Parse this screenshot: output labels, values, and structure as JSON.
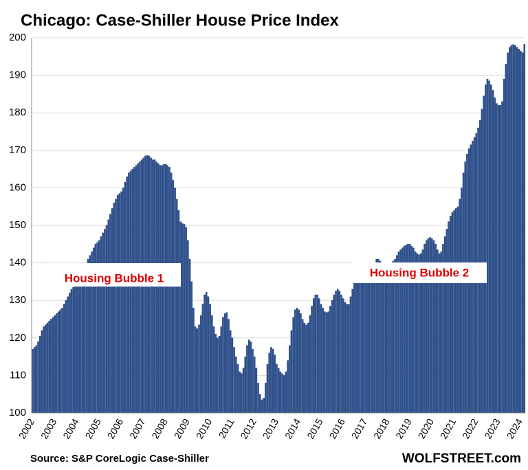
{
  "chart_data": {
    "type": "bar",
    "title": "Chicago: Case-Shiller House Price Index",
    "source": "Source: S&P CoreLogic Case-Shiller",
    "brand": "WOLFSTREET.com",
    "annotations": [
      "Housing Bubble 1",
      "Housing Bubble 2"
    ],
    "color": "#2f5597",
    "grid": true,
    "ylim": [
      100,
      200
    ],
    "yticks": [
      100,
      110,
      120,
      130,
      140,
      150,
      160,
      170,
      180,
      190,
      200
    ],
    "categories": [
      "2002",
      null,
      null,
      null,
      null,
      null,
      null,
      null,
      null,
      null,
      null,
      null,
      "2003",
      null,
      null,
      null,
      null,
      null,
      null,
      null,
      null,
      null,
      null,
      null,
      "2004",
      null,
      null,
      null,
      null,
      null,
      null,
      null,
      null,
      null,
      null,
      null,
      "2005",
      null,
      null,
      null,
      null,
      null,
      null,
      null,
      null,
      null,
      null,
      null,
      "2006",
      null,
      null,
      null,
      null,
      null,
      null,
      null,
      null,
      null,
      null,
      null,
      "2007",
      null,
      null,
      null,
      null,
      null,
      null,
      null,
      null,
      null,
      null,
      null,
      "2008",
      null,
      null,
      null,
      null,
      null,
      null,
      null,
      null,
      null,
      null,
      null,
      "2009",
      null,
      null,
      null,
      null,
      null,
      null,
      null,
      null,
      null,
      null,
      null,
      "2010",
      null,
      null,
      null,
      null,
      null,
      null,
      null,
      null,
      null,
      null,
      null,
      "2011",
      null,
      null,
      null,
      null,
      null,
      null,
      null,
      null,
      null,
      null,
      null,
      "2012",
      null,
      null,
      null,
      null,
      null,
      null,
      null,
      null,
      null,
      null,
      null,
      "2013",
      null,
      null,
      null,
      null,
      null,
      null,
      null,
      null,
      null,
      null,
      null,
      "2014",
      null,
      null,
      null,
      null,
      null,
      null,
      null,
      null,
      null,
      null,
      null,
      "2015",
      null,
      null,
      null,
      null,
      null,
      null,
      null,
      null,
      null,
      null,
      null,
      "2016",
      null,
      null,
      null,
      null,
      null,
      null,
      null,
      null,
      null,
      null,
      null,
      "2017",
      null,
      null,
      null,
      null,
      null,
      null,
      null,
      null,
      null,
      null,
      null,
      "2018",
      null,
      null,
      null,
      null,
      null,
      null,
      null,
      null,
      null,
      null,
      null,
      "2019",
      null,
      null,
      null,
      null,
      null,
      null,
      null,
      null,
      null,
      null,
      null,
      "2020",
      null,
      null,
      null,
      null,
      null,
      null,
      null,
      null,
      null,
      null,
      null,
      "2021",
      null,
      null,
      null,
      null,
      null,
      null,
      null,
      null,
      null,
      null,
      null,
      "2022",
      null,
      null,
      null,
      null,
      null,
      null,
      null,
      null,
      null,
      null,
      null,
      "2023",
      null,
      null,
      null,
      null,
      null,
      null,
      null,
      null,
      null,
      null,
      null,
      "2024",
      null,
      null
    ],
    "values": [
      117,
      117.5,
      118,
      119,
      120.5,
      122,
      123,
      123.5,
      124,
      124.5,
      125,
      125.5,
      126,
      126.5,
      127,
      127.5,
      128,
      129,
      130,
      131,
      132,
      133,
      133.5,
      134,
      134.5,
      135,
      136,
      137,
      138,
      139,
      141,
      142,
      143,
      144,
      145,
      145.5,
      146,
      147,
      148,
      149,
      150,
      151.5,
      153,
      154.5,
      156,
      157,
      158,
      158.5,
      159,
      160,
      161.5,
      163,
      164,
      164.5,
      165,
      165.5,
      166,
      166.5,
      167,
      167.5,
      168,
      168.5,
      168.7,
      168.5,
      168,
      167.5,
      167.5,
      167,
      166.5,
      166,
      166,
      166.3,
      166.3,
      166,
      165.5,
      164,
      162,
      160,
      157,
      154,
      151,
      150.5,
      150.3,
      149.5,
      146,
      141,
      135,
      128,
      123,
      122.5,
      123.5,
      126,
      129,
      131.5,
      132.2,
      131,
      129,
      126,
      123,
      121,
      120,
      120.5,
      123,
      125.5,
      126.5,
      126.8,
      125,
      122,
      120,
      117.5,
      115,
      113,
      111,
      110.5,
      112,
      115,
      118,
      119.5,
      119,
      117,
      115,
      112,
      108,
      105,
      103.5,
      104,
      108,
      113,
      116,
      117.5,
      117,
      115.5,
      113,
      112,
      111,
      110.5,
      110,
      111,
      114,
      118,
      122,
      125.5,
      127.5,
      128,
      127.5,
      126.5,
      125,
      124,
      123.5,
      124,
      126,
      128.5,
      130.5,
      131.5,
      131.5,
      130.5,
      129,
      128,
      127,
      126.8,
      127,
      128.5,
      130,
      131.5,
      132.5,
      133,
      132.5,
      131.5,
      130.5,
      129.5,
      129,
      129,
      131,
      133,
      135,
      137,
      138,
      138.5,
      138,
      137.5,
      137,
      137,
      137.5,
      138,
      139,
      140,
      141,
      141,
      140.5,
      140,
      139.5,
      139,
      139,
      139.5,
      140,
      140.5,
      141,
      142,
      143,
      143.5,
      144,
      144.5,
      144.8,
      145,
      145,
      144.5,
      144,
      143,
      142.5,
      142.2,
      142.5,
      143.5,
      145,
      146,
      146.5,
      146.8,
      146.5,
      146,
      145,
      143.5,
      142.5,
      143,
      145,
      147,
      149,
      151,
      152.5,
      153.5,
      154,
      154.5,
      155,
      157,
      160,
      164,
      167,
      169,
      170.5,
      171.5,
      172.5,
      173.5,
      174.5,
      176,
      178,
      181,
      184.5,
      187.5,
      189,
      188.5,
      187.5,
      186,
      184,
      182.5,
      182,
      182,
      183,
      189,
      193,
      196,
      197.5,
      198,
      198.2,
      198,
      197.5,
      197,
      196.5,
      196,
      198.3
    ]
  }
}
